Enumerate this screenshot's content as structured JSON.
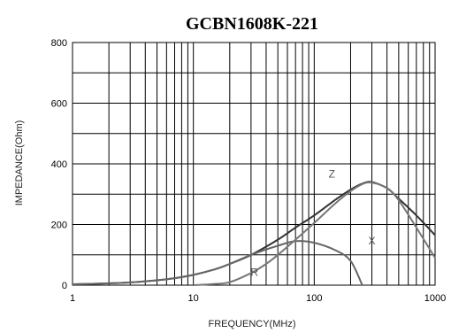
{
  "chart_data": {
    "type": "line",
    "title": "GCBN1608K-221",
    "xlabel": "FREQUENCY(MHz)",
    "ylabel": "IMPEDANCE(Ohm)",
    "x_scale": "log",
    "xlim": [
      1,
      1000
    ],
    "ylim": [
      0,
      800
    ],
    "x_ticks": [
      1,
      10,
      100,
      1000
    ],
    "x_tick_labels": [
      "1",
      "10",
      "100",
      "1000"
    ],
    "y_ticks": [
      0,
      200,
      400,
      600,
      800
    ],
    "y_tick_labels": [
      "0",
      "200",
      "400",
      "600",
      "800"
    ],
    "grid": true,
    "series": [
      {
        "name": "Z",
        "color": "#333333",
        "x": [
          1,
          2,
          3,
          5,
          7,
          10,
          15,
          20,
          30,
          50,
          70,
          100,
          150,
          200,
          250,
          300,
          400,
          500,
          700,
          1000
        ],
        "y": [
          3,
          6,
          9,
          16,
          23,
          34,
          52,
          70,
          100,
          150,
          190,
          230,
          282,
          315,
          335,
          340,
          320,
          285,
          230,
          165
        ]
      },
      {
        "name": "X",
        "color": "#666666",
        "x": [
          1,
          2,
          3,
          5,
          7,
          10,
          15,
          20,
          30,
          50,
          70,
          100,
          150,
          200,
          250
        ],
        "y": [
          3,
          6,
          9,
          16,
          23,
          34,
          52,
          70,
          100,
          130,
          145,
          140,
          115,
          80,
          0
        ]
      },
      {
        "name": "R",
        "color": "#777777",
        "x": [
          10,
          15,
          20,
          30,
          40,
          50,
          70,
          100,
          150,
          200,
          250,
          300,
          400,
          500,
          700,
          1000
        ],
        "y": [
          0,
          4,
          10,
          40,
          70,
          100,
          150,
          205,
          270,
          310,
          333,
          338,
          320,
          280,
          190,
          90
        ]
      }
    ],
    "annotations": [
      {
        "text": "Z",
        "x": 140,
        "y": 355
      },
      {
        "text": "X",
        "x": 300,
        "y": 135
      },
      {
        "text": "R",
        "x": 32,
        "y": 30
      }
    ]
  }
}
